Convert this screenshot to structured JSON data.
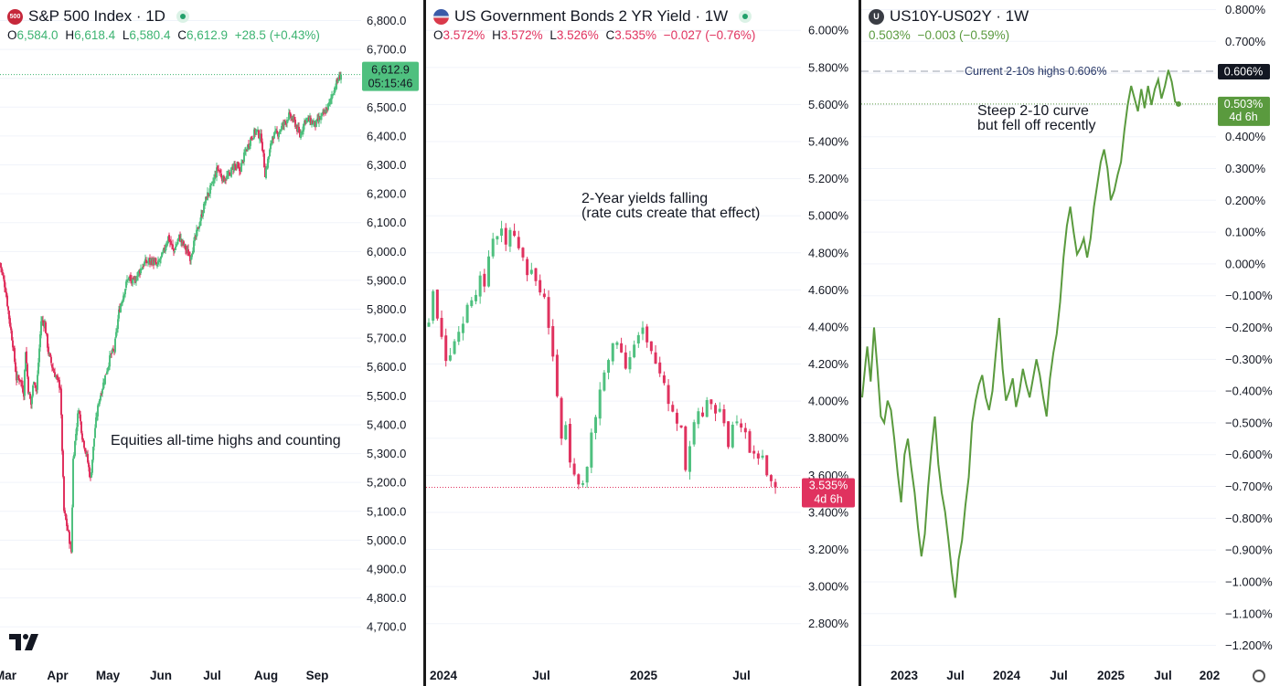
{
  "panels": [
    {
      "symbol_badge": "500",
      "title": "S&P 500 Index · 1D",
      "ohlc": {
        "o_label": "O",
        "o": "6,584.0",
        "h_label": "H",
        "h": "6,618.4",
        "l_label": "L",
        "l": "6,580.4",
        "c_label": "C",
        "c": "6,612.9",
        "change": "+28.5 (+0.43%)"
      },
      "price_label": {
        "value": "6,612.9",
        "countdown": "05:15:46"
      },
      "annotation": "Equities all-time highs and counting"
    },
    {
      "title": "US Government Bonds 2 YR Yield · 1W",
      "ohlc": {
        "o_label": "O",
        "o": "3.572%",
        "h_label": "H",
        "h": "3.572%",
        "l_label": "L",
        "l": "3.526%",
        "c_label": "C",
        "c": "3.535%",
        "change": "−0.027 (−0.76%)"
      },
      "price_label": {
        "value": "3.535%",
        "countdown": "4d 6h"
      },
      "annotation": [
        "2-Year yields falling",
        "(rate cuts create that effect)"
      ]
    },
    {
      "symbol_badge": "U",
      "title": "US10Y-US02Y · 1W",
      "ohlc": {
        "c": "0.503%",
        "change": "−0.003 (−0.59%)"
      },
      "price_label": {
        "value": "0.503%",
        "countdown": "4d 6h"
      },
      "high_label": "0.606%",
      "high_note": "Current 2-10s highs 0.606%",
      "annotation": [
        "Steep 2-10 curve",
        "but fell off recently"
      ]
    }
  ],
  "colors": {
    "up": "#4fc07f",
    "down": "#e0325f",
    "line": "#5a9a3e",
    "price_label_green": "#4fc07f",
    "price_label_red": "#e0325f",
    "high_label_bg": "#131722"
  },
  "chart_data": [
    {
      "type": "candlestick",
      "title": "S&P 500 Index · 1D",
      "x_labels": [
        "Mar",
        "Apr",
        "May",
        "Jun",
        "Jul",
        "Aug",
        "Sep"
      ],
      "y_ticks": [
        "6,800.0",
        "6,700.0",
        "6,600.0",
        "6,500.0",
        "6,400.0",
        "6,300.0",
        "6,200.0",
        "6,100.0",
        "6,000.0",
        "5,900.0",
        "5,800.0",
        "5,700.0",
        "5,600.0",
        "5,500.0",
        "5,400.0",
        "5,300.0",
        "5,200.0",
        "5,100.0",
        "5,000.0",
        "4,900.0",
        "4,800.0",
        "4,700.0"
      ],
      "ylim": [
        4650,
        6830
      ],
      "anchors": [
        [
          0,
          5960
        ],
        [
          6,
          5870
        ],
        [
          10,
          5770
        ],
        [
          14,
          5680
        ],
        [
          18,
          5560
        ],
        [
          22,
          5560
        ],
        [
          26,
          5510
        ],
        [
          28,
          5660
        ],
        [
          31,
          5520
        ],
        [
          34,
          5470
        ],
        [
          37,
          5560
        ],
        [
          40,
          5520
        ],
        [
          45,
          5760
        ],
        [
          49,
          5750
        ],
        [
          53,
          5650
        ],
        [
          58,
          5590
        ],
        [
          62,
          5560
        ],
        [
          66,
          5530
        ],
        [
          70,
          5100
        ],
        [
          75,
          5020
        ],
        [
          78,
          4960
        ],
        [
          80,
          5280
        ],
        [
          83,
          5370
        ],
        [
          86,
          5460
        ],
        [
          90,
          5360
        ],
        [
          95,
          5290
        ],
        [
          99,
          5210
        ],
        [
          104,
          5390
        ],
        [
          108,
          5480
        ],
        [
          112,
          5530
        ],
        [
          116,
          5580
        ],
        [
          121,
          5640
        ],
        [
          125,
          5660
        ],
        [
          130,
          5790
        ],
        [
          134,
          5840
        ],
        [
          140,
          5910
        ],
        [
          146,
          5890
        ],
        [
          152,
          5930
        ],
        [
          158,
          5960
        ],
        [
          165,
          5970
        ],
        [
          172,
          5950
        ],
        [
          178,
          5990
        ],
        [
          184,
          6050
        ],
        [
          190,
          6000
        ],
        [
          196,
          6050
        ],
        [
          203,
          6010
        ],
        [
          208,
          5980
        ],
        [
          214,
          6050
        ],
        [
          220,
          6120
        ],
        [
          226,
          6190
        ],
        [
          232,
          6230
        ],
        [
          238,
          6290
        ],
        [
          244,
          6250
        ],
        [
          250,
          6260
        ],
        [
          256,
          6300
        ],
        [
          262,
          6280
        ],
        [
          268,
          6340
        ],
        [
          274,
          6390
        ],
        [
          280,
          6420
        ],
        [
          286,
          6390
        ],
        [
          290,
          6270
        ],
        [
          294,
          6330
        ],
        [
          298,
          6400
        ],
        [
          304,
          6410
        ],
        [
          310,
          6440
        ],
        [
          316,
          6470
        ],
        [
          322,
          6450
        ],
        [
          328,
          6400
        ],
        [
          334,
          6460
        ],
        [
          340,
          6450
        ],
        [
          345,
          6440
        ],
        [
          350,
          6460
        ],
        [
          355,
          6480
        ],
        [
          360,
          6510
        ],
        [
          365,
          6560
        ],
        [
          369,
          6590
        ],
        [
          373,
          6612.9
        ]
      ],
      "last": 6612.9
    },
    {
      "type": "candlestick",
      "title": "US Government Bonds 2 YR Yield · 1W",
      "x_labels": [
        "2024",
        "Jul",
        "2025",
        "Jul"
      ],
      "y_ticks": [
        "6.000%",
        "5.800%",
        "5.600%",
        "5.400%",
        "5.200%",
        "5.000%",
        "4.800%",
        "4.600%",
        "4.400%",
        "4.200%",
        "4.000%",
        "3.800%",
        "3.600%",
        "3.400%",
        "3.200%",
        "3.000%",
        "2.800%"
      ],
      "ylim": [
        2.7,
        6.08
      ],
      "anchors": [
        [
          0,
          4.4
        ],
        [
          1,
          4.6
        ],
        [
          2,
          4.45
        ],
        [
          3,
          4.35
        ],
        [
          4,
          4.2
        ],
        [
          5,
          4.25
        ],
        [
          6,
          4.3
        ],
        [
          7,
          4.35
        ],
        [
          8,
          4.4
        ],
        [
          9,
          4.5
        ],
        [
          10,
          4.55
        ],
        [
          11,
          4.6
        ],
        [
          12,
          4.65
        ],
        [
          13,
          4.65
        ],
        [
          14,
          4.75
        ],
        [
          15,
          4.85
        ],
        [
          16,
          4.9
        ],
        [
          17,
          4.95
        ],
        [
          18,
          4.85
        ],
        [
          19,
          4.95
        ],
        [
          20,
          4.9
        ],
        [
          21,
          4.85
        ],
        [
          22,
          4.75
        ],
        [
          23,
          4.7
        ],
        [
          24,
          4.7
        ],
        [
          25,
          4.65
        ],
        [
          26,
          4.6
        ],
        [
          27,
          4.55
        ],
        [
          28,
          4.4
        ],
        [
          29,
          4.25
        ],
        [
          30,
          4.0
        ],
        [
          31,
          3.8
        ],
        [
          32,
          3.9
        ],
        [
          33,
          3.7
        ],
        [
          34,
          3.62
        ],
        [
          35,
          3.58
        ],
        [
          36,
          3.55
        ],
        [
          37,
          3.65
        ],
        [
          38,
          3.8
        ],
        [
          39,
          3.92
        ],
        [
          40,
          4.05
        ],
        [
          41,
          4.15
        ],
        [
          42,
          4.25
        ],
        [
          43,
          4.3
        ],
        [
          44,
          4.32
        ],
        [
          45,
          4.28
        ],
        [
          46,
          4.2
        ],
        [
          47,
          4.25
        ],
        [
          48,
          4.3
        ],
        [
          49,
          4.35
        ],
        [
          50,
          4.38
        ],
        [
          51,
          4.3
        ],
        [
          52,
          4.25
        ],
        [
          53,
          4.2
        ],
        [
          54,
          4.15
        ],
        [
          55,
          4.1
        ],
        [
          56,
          4.0
        ],
        [
          57,
          3.95
        ],
        [
          58,
          3.9
        ],
        [
          59,
          3.85
        ],
        [
          60,
          3.65
        ],
        [
          61,
          3.75
        ],
        [
          62,
          3.9
        ],
        [
          63,
          3.95
        ],
        [
          64,
          3.92
        ],
        [
          65,
          3.98
        ],
        [
          66,
          3.96
        ],
        [
          67,
          3.94
        ],
        [
          68,
          3.98
        ],
        [
          69,
          3.9
        ],
        [
          70,
          3.78
        ],
        [
          71,
          3.86
        ],
        [
          72,
          3.92
        ],
        [
          73,
          3.88
        ],
        [
          74,
          3.85
        ],
        [
          75,
          3.75
        ],
        [
          76,
          3.73
        ],
        [
          77,
          3.7
        ],
        [
          78,
          3.68
        ],
        [
          79,
          3.62
        ],
        [
          80,
          3.55
        ],
        [
          81,
          3.535
        ]
      ],
      "last": 3.535
    },
    {
      "type": "line",
      "title": "US10Y-US02Y · 1W",
      "x_labels": [
        "2023",
        "Jul",
        "2024",
        "Jul",
        "2025",
        "Jul",
        "202"
      ],
      "y_ticks": [
        "0.800%",
        "0.700%",
        "0.600%",
        "0.500%",
        "0.400%",
        "0.300%",
        "0.200%",
        "0.100%",
        "0.000%",
        "−0.100%",
        "−0.200%",
        "−0.300%",
        "−0.400%",
        "−0.500%",
        "−0.600%",
        "−0.700%",
        "−0.800%",
        "−0.900%",
        "−1.000%",
        "−1.100%",
        "−1.200%"
      ],
      "ylim": [
        -1.23,
        0.81
      ],
      "points": [
        [
          0,
          -0.42
        ],
        [
          2,
          -0.31
        ],
        [
          3,
          -0.26
        ],
        [
          5,
          -0.37
        ],
        [
          7,
          -0.2
        ],
        [
          9,
          -0.33
        ],
        [
          11,
          -0.48
        ],
        [
          13,
          -0.5
        ],
        [
          15,
          -0.43
        ],
        [
          17,
          -0.46
        ],
        [
          19,
          -0.55
        ],
        [
          21,
          -0.66
        ],
        [
          23,
          -0.75
        ],
        [
          25,
          -0.6
        ],
        [
          27,
          -0.55
        ],
        [
          29,
          -0.64
        ],
        [
          31,
          -0.72
        ],
        [
          33,
          -0.83
        ],
        [
          35,
          -0.92
        ],
        [
          37,
          -0.85
        ],
        [
          39,
          -0.7
        ],
        [
          41,
          -0.58
        ],
        [
          43,
          -0.48
        ],
        [
          45,
          -0.63
        ],
        [
          47,
          -0.72
        ],
        [
          49,
          -0.78
        ],
        [
          51,
          -0.87
        ],
        [
          53,
          -0.97
        ],
        [
          55,
          -1.05
        ],
        [
          57,
          -0.93
        ],
        [
          59,
          -0.87
        ],
        [
          61,
          -0.76
        ],
        [
          63,
          -0.67
        ],
        [
          65,
          -0.5
        ],
        [
          67,
          -0.43
        ],
        [
          69,
          -0.38
        ],
        [
          71,
          -0.35
        ],
        [
          73,
          -0.42
        ],
        [
          75,
          -0.46
        ],
        [
          77,
          -0.4
        ],
        [
          79,
          -0.28
        ],
        [
          81,
          -0.17
        ],
        [
          83,
          -0.33
        ],
        [
          85,
          -0.43
        ],
        [
          87,
          -0.4
        ],
        [
          89,
          -0.36
        ],
        [
          91,
          -0.45
        ],
        [
          93,
          -0.4
        ],
        [
          95,
          -0.33
        ],
        [
          97,
          -0.38
        ],
        [
          99,
          -0.42
        ],
        [
          101,
          -0.36
        ],
        [
          103,
          -0.3
        ],
        [
          105,
          -0.35
        ],
        [
          107,
          -0.42
        ],
        [
          109,
          -0.48
        ],
        [
          111,
          -0.36
        ],
        [
          113,
          -0.28
        ],
        [
          115,
          -0.22
        ],
        [
          117,
          -0.12
        ],
        [
          119,
          0.02
        ],
        [
          121,
          0.12
        ],
        [
          123,
          0.18
        ],
        [
          125,
          0.1
        ],
        [
          127,
          0.03
        ],
        [
          129,
          0.05
        ],
        [
          131,
          0.08
        ],
        [
          133,
          0.02
        ],
        [
          135,
          0.08
        ],
        [
          137,
          0.18
        ],
        [
          139,
          0.25
        ],
        [
          141,
          0.32
        ],
        [
          143,
          0.36
        ],
        [
          145,
          0.3
        ],
        [
          147,
          0.2
        ],
        [
          149,
          0.23
        ],
        [
          151,
          0.28
        ],
        [
          153,
          0.32
        ],
        [
          155,
          0.42
        ],
        [
          157,
          0.5
        ],
        [
          159,
          0.56
        ],
        [
          161,
          0.52
        ],
        [
          163,
          0.48
        ],
        [
          165,
          0.55
        ],
        [
          167,
          0.49
        ],
        [
          169,
          0.56
        ],
        [
          171,
          0.5
        ],
        [
          173,
          0.55
        ],
        [
          175,
          0.58
        ],
        [
          177,
          0.52
        ],
        [
          179,
          0.56
        ],
        [
          181,
          0.61
        ],
        [
          183,
          0.573
        ],
        [
          185,
          0.51
        ],
        [
          187,
          0.503
        ]
      ],
      "last": 0.503
    }
  ]
}
